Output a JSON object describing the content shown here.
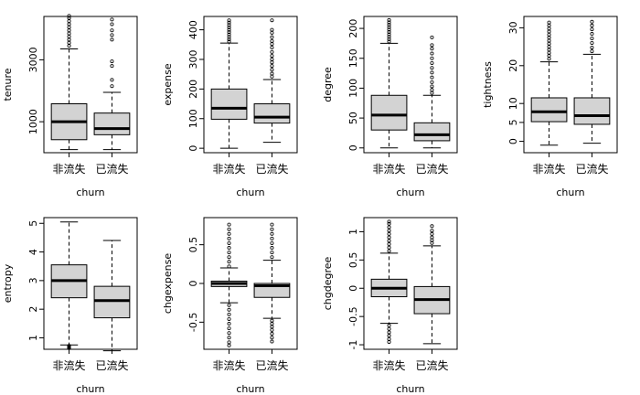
{
  "chart_data": [
    {
      "type": "boxplot",
      "xlabel": "churn",
      "ylabel": "tenure",
      "categories": [
        "非流失",
        "已流失"
      ],
      "ylim": [
        0,
        4400
      ],
      "yticks": [
        1000,
        3000
      ],
      "boxes": [
        {
          "lower_whisker": 100,
          "q1": 420,
          "median": 1000,
          "q3": 1580,
          "upper_whisker": 3350,
          "outliers": [
            3450,
            3550,
            3650,
            3750,
            3850,
            3950,
            4050,
            4150,
            4250,
            4350,
            4420
          ]
        },
        {
          "lower_whisker": 100,
          "q1": 580,
          "median": 780,
          "q3": 1280,
          "upper_whisker": 1950,
          "outliers": [
            2150,
            2350,
            2800,
            2950,
            3650,
            3800,
            3950,
            4150,
            4300
          ]
        }
      ]
    },
    {
      "type": "boxplot",
      "xlabel": "churn",
      "ylabel": "expense",
      "categories": [
        "非流失",
        "已流失"
      ],
      "ylim": [
        -15,
        445
      ],
      "yticks": [
        0,
        100,
        200,
        300,
        400
      ],
      "boxes": [
        {
          "lower_whisker": 0,
          "q1": 98,
          "median": 135,
          "q3": 200,
          "upper_whisker": 355,
          "outliers": [
            360,
            368,
            376,
            384,
            392,
            400,
            408,
            416,
            424,
            432
          ]
        },
        {
          "lower_whisker": 20,
          "q1": 85,
          "median": 105,
          "q3": 150,
          "upper_whisker": 232,
          "outliers": [
            242,
            252,
            265,
            278,
            290,
            300,
            312,
            325,
            340,
            352,
            362,
            375,
            390,
            400,
            432
          ]
        }
      ]
    },
    {
      "type": "boxplot",
      "xlabel": "churn",
      "ylabel": "degree",
      "categories": [
        "非流失",
        "已流失"
      ],
      "ylim": [
        -8,
        220
      ],
      "yticks": [
        0,
        50,
        100,
        150,
        200
      ],
      "boxes": [
        {
          "lower_whisker": 0,
          "q1": 30,
          "median": 55,
          "q3": 88,
          "upper_whisker": 175,
          "outliers": [
            178,
            182,
            186,
            190,
            194,
            198,
            202,
            206,
            210,
            214
          ]
        },
        {
          "lower_whisker": 0,
          "q1": 12,
          "median": 22,
          "q3": 42,
          "upper_whisker": 88,
          "outliers": [
            92,
            97,
            103,
            110,
            118,
            126,
            134,
            142,
            150,
            158,
            166,
            172,
            185
          ]
        }
      ]
    },
    {
      "type": "boxplot",
      "xlabel": "churn",
      "ylabel": "tightness",
      "categories": [
        "非流失",
        "已流失"
      ],
      "ylim": [
        -3,
        33
      ],
      "yticks": [
        0,
        5,
        10,
        20,
        30
      ],
      "boxes": [
        {
          "lower_whisker": -1,
          "q1": 5.2,
          "median": 7.8,
          "q3": 11.5,
          "upper_whisker": 21,
          "outliers": [
            21.8,
            22.6,
            23.4,
            24.2,
            25,
            25.8,
            26.6,
            27.4,
            28.2,
            29,
            29.8,
            30.6,
            31.4
          ]
        },
        {
          "lower_whisker": -0.5,
          "q1": 4.5,
          "median": 6.8,
          "q3": 11.5,
          "upper_whisker": 23,
          "outliers": [
            23.8,
            24.8,
            26,
            27.2,
            28.4,
            29.6,
            30.6,
            31.6
          ]
        }
      ]
    },
    {
      "type": "boxplot",
      "xlabel": "churn",
      "ylabel": "entropy",
      "categories": [
        "非流失",
        "已流失"
      ],
      "ylim": [
        0.6,
        5.2
      ],
      "yticks": [
        1,
        2,
        3,
        4,
        5
      ],
      "boxes": [
        {
          "lower_whisker": 0.75,
          "q1": 2.4,
          "median": 3.0,
          "q3": 3.55,
          "upper_whisker": 5.05,
          "outliers": [
            0.72,
            0.7,
            0.68,
            0.66,
            0.64
          ]
        },
        {
          "lower_whisker": 0.55,
          "q1": 1.7,
          "median": 2.3,
          "q3": 2.8,
          "upper_whisker": 4.4,
          "outliers": []
        }
      ]
    },
    {
      "type": "boxplot",
      "xlabel": "churn",
      "ylabel": "chgexpense",
      "categories": [
        "非流失",
        "已流失"
      ],
      "ylim": [
        -0.85,
        0.85
      ],
      "yticks": [
        -0.5,
        0.0,
        0.5
      ],
      "boxes": [
        {
          "lower_whisker": -0.25,
          "q1": -0.04,
          "median": 0.0,
          "q3": 0.03,
          "upper_whisker": 0.2,
          "outliers": [
            0.22,
            0.28,
            0.34,
            0.4,
            0.46,
            0.52,
            0.58,
            0.64,
            0.7,
            0.76,
            -0.28,
            -0.34,
            -0.4,
            -0.46,
            -0.52,
            -0.58,
            -0.64,
            -0.7,
            -0.76,
            -0.8
          ]
        },
        {
          "lower_whisker": -0.45,
          "q1": -0.18,
          "median": -0.03,
          "q3": 0.0,
          "upper_whisker": 0.3,
          "outliers": [
            0.34,
            0.4,
            0.46,
            0.52,
            0.58,
            0.64,
            0.7,
            0.76,
            -0.48,
            -0.52,
            -0.56,
            -0.6,
            -0.65,
            -0.7,
            -0.75
          ]
        }
      ]
    },
    {
      "type": "boxplot",
      "xlabel": "churn",
      "ylabel": "chgdegree",
      "categories": [
        "非流失",
        "已流失"
      ],
      "ylim": [
        -1.08,
        1.25
      ],
      "yticks": [
        -1.0,
        -0.5,
        0.0,
        0.5,
        1.0
      ],
      "boxes": [
        {
          "lower_whisker": -0.62,
          "q1": -0.15,
          "median": 0.0,
          "q3": 0.16,
          "upper_whisker": 0.62,
          "outliers": [
            0.66,
            0.72,
            0.78,
            0.84,
            0.9,
            0.96,
            1.02,
            1.08,
            1.14,
            1.18,
            -0.66,
            -0.72,
            -0.78,
            -0.84,
            -0.9,
            -0.95
          ]
        },
        {
          "lower_whisker": -0.98,
          "q1": -0.45,
          "median": -0.2,
          "q3": 0.03,
          "upper_whisker": 0.75,
          "outliers": [
            0.8,
            0.85,
            0.9,
            0.96,
            1.02,
            1.1
          ]
        }
      ]
    }
  ]
}
